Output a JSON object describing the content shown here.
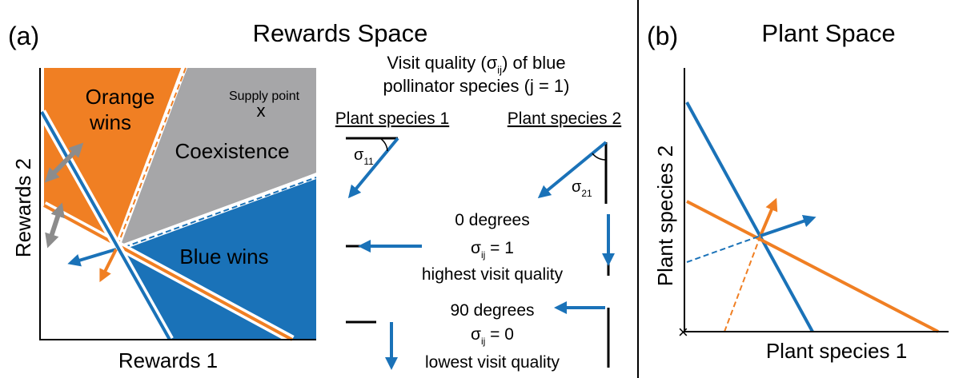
{
  "panel_a": {
    "label": "(a)",
    "title": "Rewards Space",
    "regions": {
      "orange": [
        "Orange",
        "wins"
      ],
      "coexistence": "Coexistence",
      "supply_point": "Supply point",
      "supply_marker": "x",
      "blue": "Blue wins"
    },
    "y_axis": "Rewards 2",
    "x_axis": "Rewards 1"
  },
  "legend": {
    "heading_1": {
      "before": "Visit quality (σ",
      "subscript": "ij",
      "after": ") of blue"
    },
    "heading_2": "pollinator species (j = 1)",
    "plant_1": "Plant species 1",
    "plant_2": "Plant species 2",
    "sigma_11": {
      "symbol": "σ",
      "subscript": "11"
    },
    "sigma_21": {
      "symbol": "σ",
      "subscript": "21"
    },
    "zero": {
      "degrees": "0 degrees",
      "symbol": "σ",
      "subscript": "ij",
      "equals": " = 1",
      "quality": "highest visit quality"
    },
    "ninety": {
      "degrees": "90 degrees",
      "symbol": "σ",
      "subscript": "ij",
      "equals": " = 0",
      "quality": "lowest visit quality"
    }
  },
  "panel_b": {
    "label": "(b)",
    "title": "Plant Space",
    "y_axis": "Plant species 2",
    "x_axis": "Plant species 1"
  }
}
